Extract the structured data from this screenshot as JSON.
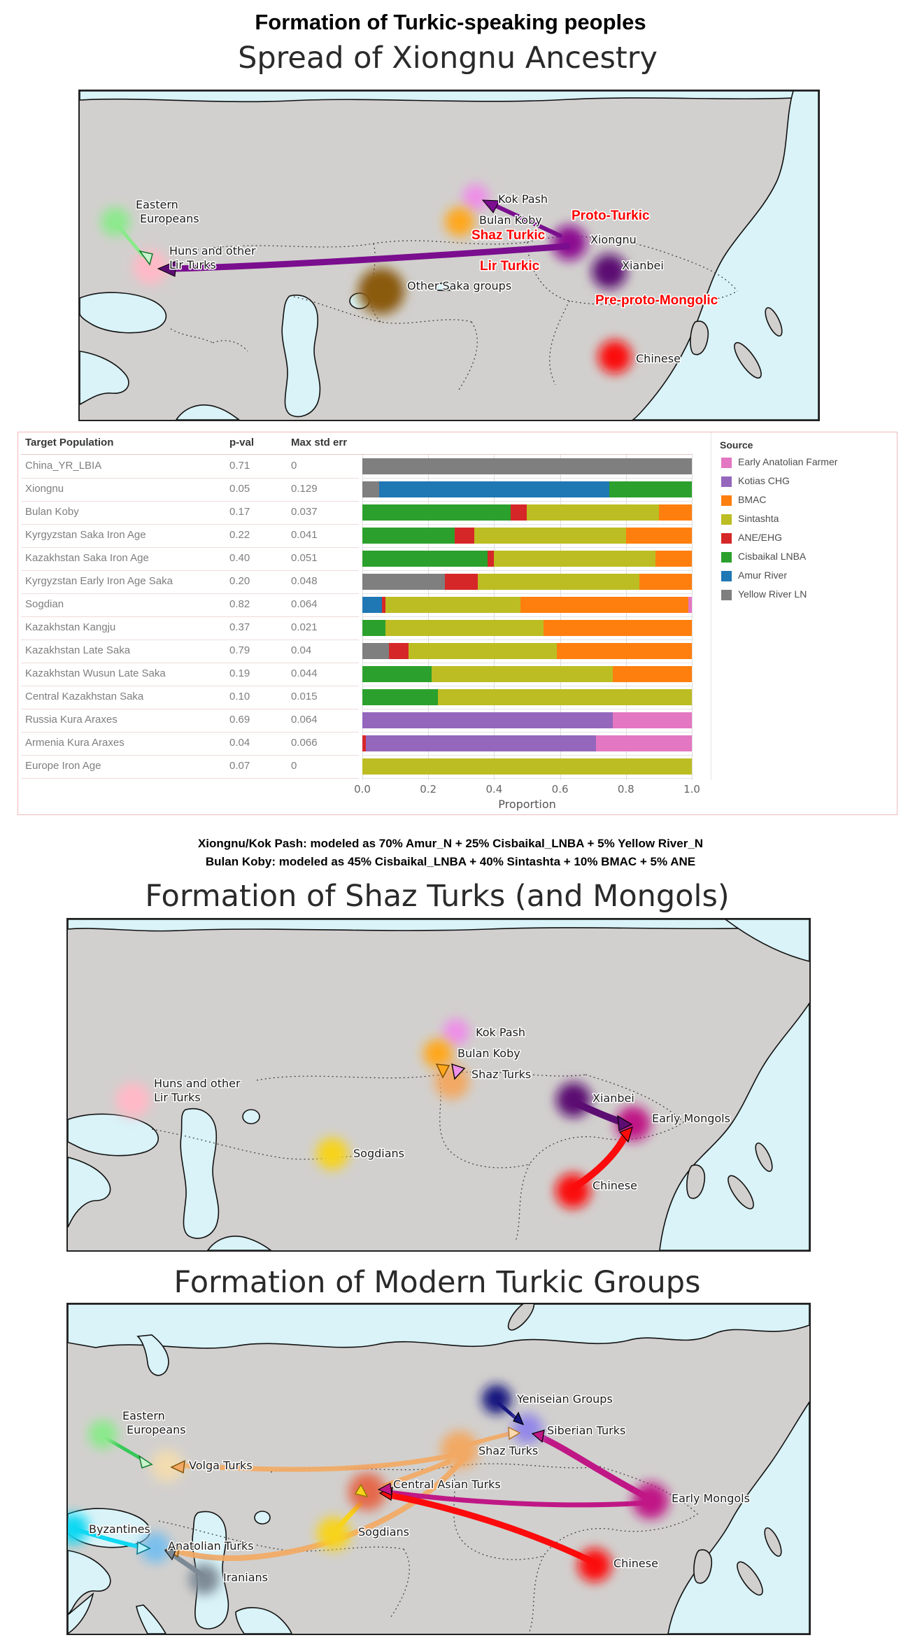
{
  "titles": {
    "main": "Formation of Turkic-speaking peoples",
    "map1": "Spread of Xiongnu Ancestry",
    "map2": "Formation of Shaz Turks (and Mongols)",
    "map3": "Formation of Modern Turkic Groups"
  },
  "caption": {
    "line1": "Xiongnu/Kok Pash: modeled as 70% Amur_N + 25% Cisbaikal_LNBA + 5% Yellow River_N",
    "line2": "Bulan Koby: modeled as 45% Cisbaikal_LNBA + 40% Sintashta + 10% BMAC + 5% ANE"
  },
  "palette": {
    "eastern_europeans": "#8ce98c",
    "huns_lir_turks": "#ffb9c6",
    "other_saka": "#8a5a10",
    "kok_pash": "#ee8fe8",
    "bulan_koby": "#ffa71c",
    "xiongnu": "#8d1091",
    "xianbei": "#5c0d72",
    "chinese": "#fb0b0b",
    "sogdians": "#f7d31c",
    "early_mongols": "#c01786",
    "shaz_turks": "#f2a964",
    "yeniseian_groups": "#16167f",
    "siberian_turks": "#9287e8",
    "volga_turks": "#f2dcb0",
    "byzantines": "#0fd8f2",
    "anatolian_turks": "#79bfed",
    "central_asian_turks": "#e5694b",
    "iranians": "#7d8a96",
    "green_arrow": "#35c857",
    "purple_arrow": "#7a0e8e"
  },
  "maps": {
    "map1": {
      "labels": {
        "eastern_europeans_1": "Eastern",
        "eastern_europeans_2": "Europeans",
        "huns_1": "Huns and other",
        "huns_2": "Lir Turks",
        "other_saka": "Other Saka groups",
        "kok_pash": "Kok Pash",
        "bulan_koby": "Bulan Koby",
        "xiongnu": "Xiongnu",
        "xianbei": "Xianbei",
        "chinese": "Chinese"
      },
      "annotations": {
        "proto_turkic": "Proto-Turkic",
        "shaz_turkic": "Shaz Turkic",
        "lir_turkic": "Lir Turkic",
        "pre_proto_mongolic": "Pre-proto-Mongolic"
      }
    },
    "map2": {
      "labels": {
        "huns_1": "Huns and other",
        "huns_2": "Lir Turks",
        "sogdians": "Sogdians",
        "kok_pash": "Kok Pash",
        "bulan_koby": "Bulan Koby",
        "shaz_turks": "Shaz Turks",
        "xianbei": "Xianbei",
        "early_mongols": "Early Mongols",
        "chinese": "Chinese"
      }
    },
    "map3": {
      "labels": {
        "eastern_europeans_1": "Eastern",
        "eastern_europeans_2": "Europeans",
        "volga_turks": "Volga Turks",
        "byzantines": "Byzantines",
        "anatolian_turks": "Anatolian Turks",
        "iranians": "Iranians",
        "sogdians": "Sogdians",
        "central_asian_turks": "Central Asian Turks",
        "shaz_turks": "Shaz Turks",
        "yeniseian_groups": "Yeniseian Groups",
        "siberian_turks": "Siberian Turks",
        "early_mongols": "Early Mongols",
        "chinese": "Chinese"
      }
    }
  },
  "chart_data": {
    "type": "bar",
    "subtype": "horizontal-stacked with table",
    "columns": [
      "Target Population",
      "p-val",
      "Max std err"
    ],
    "xlabel": "Proportion",
    "x_ticks": [
      "0.0",
      "0.2",
      "0.4",
      "0.6",
      "0.8",
      "1.0"
    ],
    "xlim": [
      0,
      1
    ],
    "grid": true,
    "legend_title": "Source",
    "legend_position": "right",
    "sources": [
      {
        "name": "Early Anatolian Farmer",
        "color": "#e377c2"
      },
      {
        "name": "Kotias CHG",
        "color": "#9467bd"
      },
      {
        "name": "BMAC",
        "color": "#ff7f0e"
      },
      {
        "name": "Sintashta",
        "color": "#bcbd22"
      },
      {
        "name": "ANE/EHG",
        "color": "#d62728"
      },
      {
        "name": "Cisbaikal LNBA",
        "color": "#2ca02c"
      },
      {
        "name": "Amur River",
        "color": "#1f77b4"
      },
      {
        "name": "Yellow River LN",
        "color": "#7f7f7f"
      }
    ],
    "rows": [
      {
        "target": "China_YR_LBIA",
        "p_val": "0.71",
        "max_std_err": "0",
        "segments": [
          {
            "source": "Yellow River LN",
            "value": 1.0
          }
        ]
      },
      {
        "target": "Xiongnu",
        "p_val": "0.05",
        "max_std_err": "0.129",
        "segments": [
          {
            "source": "Yellow River LN",
            "value": 0.05
          },
          {
            "source": "Amur River",
            "value": 0.7
          },
          {
            "source": "Cisbaikal LNBA",
            "value": 0.25
          }
        ]
      },
      {
        "target": "Bulan Koby",
        "p_val": "0.17",
        "max_std_err": "0.037",
        "segments": [
          {
            "source": "Cisbaikal LNBA",
            "value": 0.45
          },
          {
            "source": "ANE/EHG",
            "value": 0.05
          },
          {
            "source": "Sintashta",
            "value": 0.4
          },
          {
            "source": "BMAC",
            "value": 0.1
          }
        ]
      },
      {
        "target": "Kyrgyzstan Saka Iron Age",
        "p_val": "0.22",
        "max_std_err": "0.041",
        "segments": [
          {
            "source": "Cisbaikal LNBA",
            "value": 0.28
          },
          {
            "source": "ANE/EHG",
            "value": 0.06
          },
          {
            "source": "Sintashta",
            "value": 0.46
          },
          {
            "source": "BMAC",
            "value": 0.2
          }
        ]
      },
      {
        "target": "Kazakhstan Saka Iron Age",
        "p_val": "0.40",
        "max_std_err": "0.051",
        "segments": [
          {
            "source": "Cisbaikal LNBA",
            "value": 0.38
          },
          {
            "source": "ANE/EHG",
            "value": 0.02
          },
          {
            "source": "Sintashta",
            "value": 0.49
          },
          {
            "source": "BMAC",
            "value": 0.11
          }
        ]
      },
      {
        "target": "Kyrgyzstan Early Iron Age Saka",
        "p_val": "0.20",
        "max_std_err": "0.048",
        "segments": [
          {
            "source": "Yellow River LN",
            "value": 0.25
          },
          {
            "source": "ANE/EHG",
            "value": 0.1
          },
          {
            "source": "Sintashta",
            "value": 0.49
          },
          {
            "source": "BMAC",
            "value": 0.16
          }
        ]
      },
      {
        "target": "Sogdian",
        "p_val": "0.82",
        "max_std_err": "0.064",
        "segments": [
          {
            "source": "Amur River",
            "value": 0.06
          },
          {
            "source": "ANE/EHG",
            "value": 0.01
          },
          {
            "source": "Sintashta",
            "value": 0.41
          },
          {
            "source": "BMAC",
            "value": 0.51
          },
          {
            "source": "Early Anatolian Farmer",
            "value": 0.01
          }
        ]
      },
      {
        "target": "Kazakhstan Kangju",
        "p_val": "0.37",
        "max_std_err": "0.021",
        "segments": [
          {
            "source": "Cisbaikal LNBA",
            "value": 0.07
          },
          {
            "source": "Sintashta",
            "value": 0.48
          },
          {
            "source": "BMAC",
            "value": 0.45
          }
        ]
      },
      {
        "target": "Kazakhstan Late Saka",
        "p_val": "0.79",
        "max_std_err": "0.04",
        "segments": [
          {
            "source": "Yellow River LN",
            "value": 0.08
          },
          {
            "source": "ANE/EHG",
            "value": 0.06
          },
          {
            "source": "Sintashta",
            "value": 0.45
          },
          {
            "source": "BMAC",
            "value": 0.41
          }
        ]
      },
      {
        "target": "Kazakhstan Wusun Late Saka",
        "p_val": "0.19",
        "max_std_err": "0.044",
        "segments": [
          {
            "source": "Cisbaikal LNBA",
            "value": 0.21
          },
          {
            "source": "Sintashta",
            "value": 0.55
          },
          {
            "source": "BMAC",
            "value": 0.24
          }
        ]
      },
      {
        "target": "Central Kazakhstan Saka",
        "p_val": "0.10",
        "max_std_err": "0.015",
        "segments": [
          {
            "source": "Cisbaikal LNBA",
            "value": 0.23
          },
          {
            "source": "Sintashta",
            "value": 0.77
          }
        ]
      },
      {
        "target": "Russia Kura Araxes",
        "p_val": "0.69",
        "max_std_err": "0.064",
        "segments": [
          {
            "source": "Kotias CHG",
            "value": 0.76
          },
          {
            "source": "Early Anatolian Farmer",
            "value": 0.24
          }
        ]
      },
      {
        "target": "Armenia Kura Araxes",
        "p_val": "0.04",
        "max_std_err": "0.066",
        "segments": [
          {
            "source": "ANE/EHG",
            "value": 0.01
          },
          {
            "source": "Kotias CHG",
            "value": 0.7
          },
          {
            "source": "Early Anatolian Farmer",
            "value": 0.29
          }
        ]
      },
      {
        "target": "Europe Iron Age",
        "p_val": "0.07",
        "max_std_err": "0",
        "segments": [
          {
            "source": "Sintashta",
            "value": 1.0
          }
        ]
      }
    ]
  }
}
